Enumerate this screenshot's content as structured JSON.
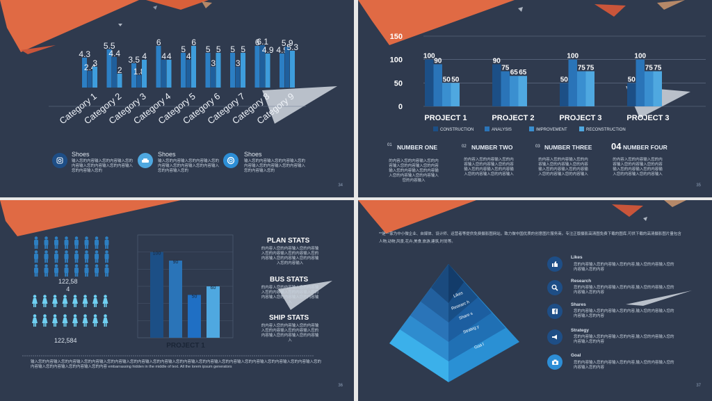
{
  "slide1": {
    "chart_data": {
      "type": "bar",
      "categories": [
        "Category 1",
        "Category 2",
        "Category 3",
        "Category 4",
        "Category 5",
        "Category 6",
        "Category 7",
        "Category 8",
        "Category 9"
      ],
      "series": [
        {
          "values": [
            4.3,
            5.5,
            3.5,
            6,
            5,
            5,
            5,
            6,
            4.9
          ]
        },
        {
          "values": [
            2.4,
            4.4,
            1.8,
            4,
            4,
            3,
            3,
            6.1,
            5.9
          ]
        },
        {
          "values": [
            3,
            2,
            4,
            4,
            6,
            5,
            5,
            4.9,
            5.3
          ]
        }
      ]
    },
    "features": [
      {
        "title": "Shoes",
        "text": "输入您的内容输入您的内容输入您的内容输入您的内容输入您的内容输入您的内容输入您的",
        "icon": "instagram-icon"
      },
      {
        "title": "Shoes",
        "text": "输入您的内容输入您的内容输入您的内容输入您的内容输入您的内容输入您的内容输入您的",
        "icon": "car-icon"
      },
      {
        "title": "Shoes",
        "text": "输入您的内容输入您的内容输入您的内容输入您的内容输入您的内容输入您的内容输入您的",
        "icon": "lifebuoy-icon"
      }
    ],
    "page": "34"
  },
  "slide2": {
    "chart_data": {
      "type": "bar",
      "categories": [
        "PROJECT 1",
        "PROJECT 2",
        "PROJECT 3",
        "PROJECT 3"
      ],
      "series": [
        {
          "name": "CONSTRUCTION",
          "values": [
            100,
            90,
            50,
            50
          ]
        },
        {
          "name": "ANALYSIS",
          "values": [
            90,
            75,
            100,
            100
          ]
        },
        {
          "name": "IMPROVEMENT",
          "values": [
            50,
            65,
            75,
            75
          ]
        },
        {
          "name": "RECONSTRUCTION",
          "values": [
            50,
            65,
            75,
            75
          ]
        }
      ],
      "ylim": [
        0,
        150
      ],
      "yticks": [
        "0",
        "50",
        "100",
        "150"
      ]
    },
    "numbers": [
      {
        "n": "01",
        "title": "NUMBER ONE",
        "text": "的内容入您的内容输入您的内容输入您的内容输入您的内容输入您的内容输入您的内容输入您的内容输入您的内容输入您的内容输入"
      },
      {
        "n": "02",
        "title": "NUMBER TWO",
        "text": "的内容入您的内容输入您的内容输入您的内容输入您的内容输入您的内容输入您的内容输入您的内容输入您的内容输入"
      },
      {
        "n": "03",
        "title": "NUMBER THREE",
        "text": "的内容入您的内容输入您的内容输入您的内容输入您的内容输入您的内容输入您的内容输入您的内容输入您的内容输入"
      },
      {
        "n": "04",
        "title": "NUMBER FOUR",
        "text": "的内容入您的内容输入您的内容输入您的内容输入您的内容输入您的内容输入您的内容输入您的内容输入您的内容输入"
      }
    ],
    "page": "35"
  },
  "slide3": {
    "male_count": "122,58\n4",
    "female_count": "122,584",
    "chart_data": {
      "type": "bar",
      "categories": [
        "PROJECT 1"
      ],
      "series": [
        {
          "values": [
            100
          ]
        },
        {
          "values": [
            90
          ]
        },
        {
          "values": [
            50
          ]
        },
        {
          "values": [
            60
          ]
        }
      ],
      "ylim": [
        0,
        120
      ]
    },
    "stats": [
      {
        "title": "PLAN STATS",
        "text": "的内容入您的内容输入您的内容输入您的内容输入您的内容输入您的内容输入您的内容输入您的内容输入您的内容输入"
      },
      {
        "title": "BUS STATS",
        "text": "的内容入您的内容输入您的内容输入您的内容输入您的内容输入您的内容输入您的内容输入您的内容输入"
      },
      {
        "title": "SHIP STATS",
        "text": "的内容入您的内容输入您的内容输入您的内容输入您的内容输入您的内容输入您的内容输入您的内容输入"
      }
    ],
    "footer": "输入您的内容输入您的内容输入您的内容输入您的内容输入您的内容输入您的内容输入您的内容输入您的内容输入您的内容输入您的内容输入您的内容输入您的内容输入您的内容输入您的内容输入您的内容输入您的内容 embarrassing hidden in the middle of text. All the lorem ipsum generators",
    "page": "36"
  },
  "slide4": {
    "intro": "**是一家为中小微企业、自媒体、设计师、运营者等提供免费摄影图网站，致力做中国优质的创意图片服务商。专注正版摄影高清图免费下载的图库,可供下载的高清摄影图片量包含人物,动物,风景,花卉,美食,旅游,建筑,时尚等。",
    "pyramid": [
      "Likes",
      "Researc h",
      "Share s",
      "Strateg y",
      "Goa l"
    ],
    "items": [
      {
        "title": "Likes",
        "text": "您的内容输入您的内容输入您的内容,输入您的内容输入您的内容输入您的内容",
        "icon": "thumbs-up-icon"
      },
      {
        "title": "Research",
        "text": "您的内容输入您的内容输入您的内容,输入您的内容输入您的内容输入您的内容",
        "icon": "search-icon"
      },
      {
        "title": "Shares",
        "text": "您的内容输入您的内容输入您的内容,输入您的内容输入您的内容输入您的内容",
        "icon": "facebook-icon"
      },
      {
        "title": "Strategy",
        "text": "您的内容输入您的内容输入您的内容,输入您的内容输入您的内容输入您的内容",
        "icon": "megaphone-icon"
      },
      {
        "title": "Goal",
        "text": "您的内容输入您的内容输入您的内容,输入您的内容输入您的内容输入您的内容",
        "icon": "camera-icon"
      }
    ],
    "page": "37"
  }
}
